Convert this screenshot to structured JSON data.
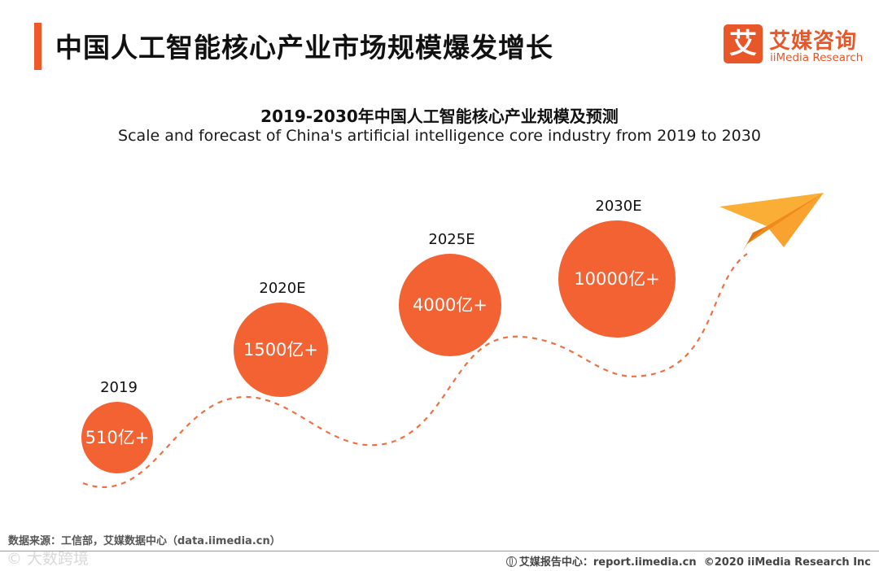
{
  "header": {
    "title": "中国人工智能核心产业市场规模爆发增长"
  },
  "logo": {
    "mark": "艾",
    "name_cn": "艾媒咨询",
    "name_en": "iiMedia Research"
  },
  "footer": {
    "source": "数据来源：工信部，艾媒数据中心（data.iimedia.cn）",
    "watermark": "© 大数跨境",
    "report_center": "艾媒报告中心：report.iimedia.cn",
    "copyright": "©2020  iiMedia Research  Inc"
  },
  "colors": {
    "accent": "#f0592a",
    "bubble": "#f26233",
    "bubble_text": "#ffffff",
    "plane_light": "#fbae35",
    "plane_dark": "#f08a1c"
  },
  "icons": [
    "paper-plane-icon",
    "globe-icon"
  ],
  "chart_data": {
    "type": "bubble-timeline",
    "title": "2019-2030年中国人工智能核心产业规模及预测",
    "subtitle": "Scale and forecast of China's artificial intelligence core industry from 2019 to 2030",
    "unit": "亿",
    "points": [
      {
        "year": "2019",
        "value": 510,
        "label": "510亿+"
      },
      {
        "year": "2020E",
        "value": 1500,
        "label": "1500亿+"
      },
      {
        "year": "2025E",
        "value": 4000,
        "label": "4000亿+"
      },
      {
        "year": "2030E",
        "value": 10000,
        "label": "10000亿+"
      }
    ]
  }
}
